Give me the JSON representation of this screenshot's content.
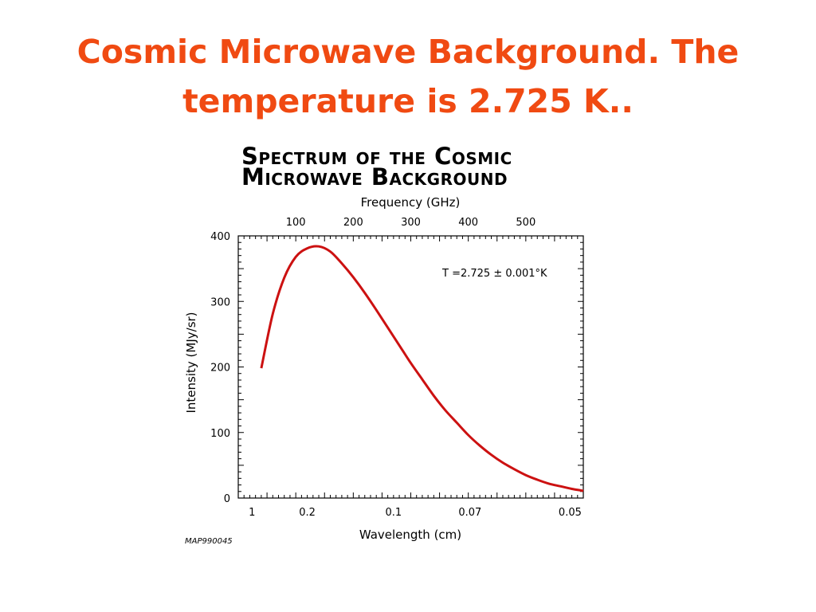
{
  "slide": {
    "title": "Cosmic Microwave Background. The temperature is 2.725 K.."
  },
  "figure": {
    "title_line1": "Spectrum of the Cosmic",
    "title_line2": "Microwave Background",
    "code": "MAP990045"
  },
  "colors": {
    "title": "#f04a12",
    "curve": "#cc1111"
  },
  "chart_data": {
    "type": "line",
    "title": "Spectrum of the Cosmic Microwave Background",
    "xlabel": "Wavelength (cm)",
    "x2label": "Frequency (GHz)",
    "ylabel": "Intensity (MJy/sr)",
    "annotation": "T =2.725 ± 0.001°K",
    "xlim_ghz": [
      0,
      600
    ],
    "ylim": [
      0,
      400
    ],
    "y_ticks": [
      0,
      100,
      200,
      300,
      400
    ],
    "top_ticks": [
      "100",
      "200",
      "300",
      "400",
      "500"
    ],
    "top_tick_values_ghz": [
      100,
      200,
      300,
      400,
      500
    ],
    "bottom_ticks": [
      "1",
      "0.2",
      "0.1",
      "0.07",
      "0.05"
    ],
    "bottom_tick_values_ghz": [
      24,
      120,
      270,
      403,
      577
    ],
    "series": [
      {
        "x_ghz": [
          40,
          60,
          80,
          100,
          120,
          140,
          160,
          180,
          200,
          220,
          240,
          260,
          280,
          300,
          320,
          340,
          360,
          380,
          400,
          420,
          440,
          460,
          480,
          500,
          520,
          540,
          560,
          580,
          600
        ],
        "values": [
          198,
          281,
          336,
          368,
          381,
          384,
          376,
          358,
          337,
          313,
          287,
          260,
          233,
          206,
          181,
          156,
          134,
          115,
          96,
          80,
          66,
          54,
          44,
          35,
          28,
          22,
          18,
          14,
          11
        ]
      }
    ]
  }
}
